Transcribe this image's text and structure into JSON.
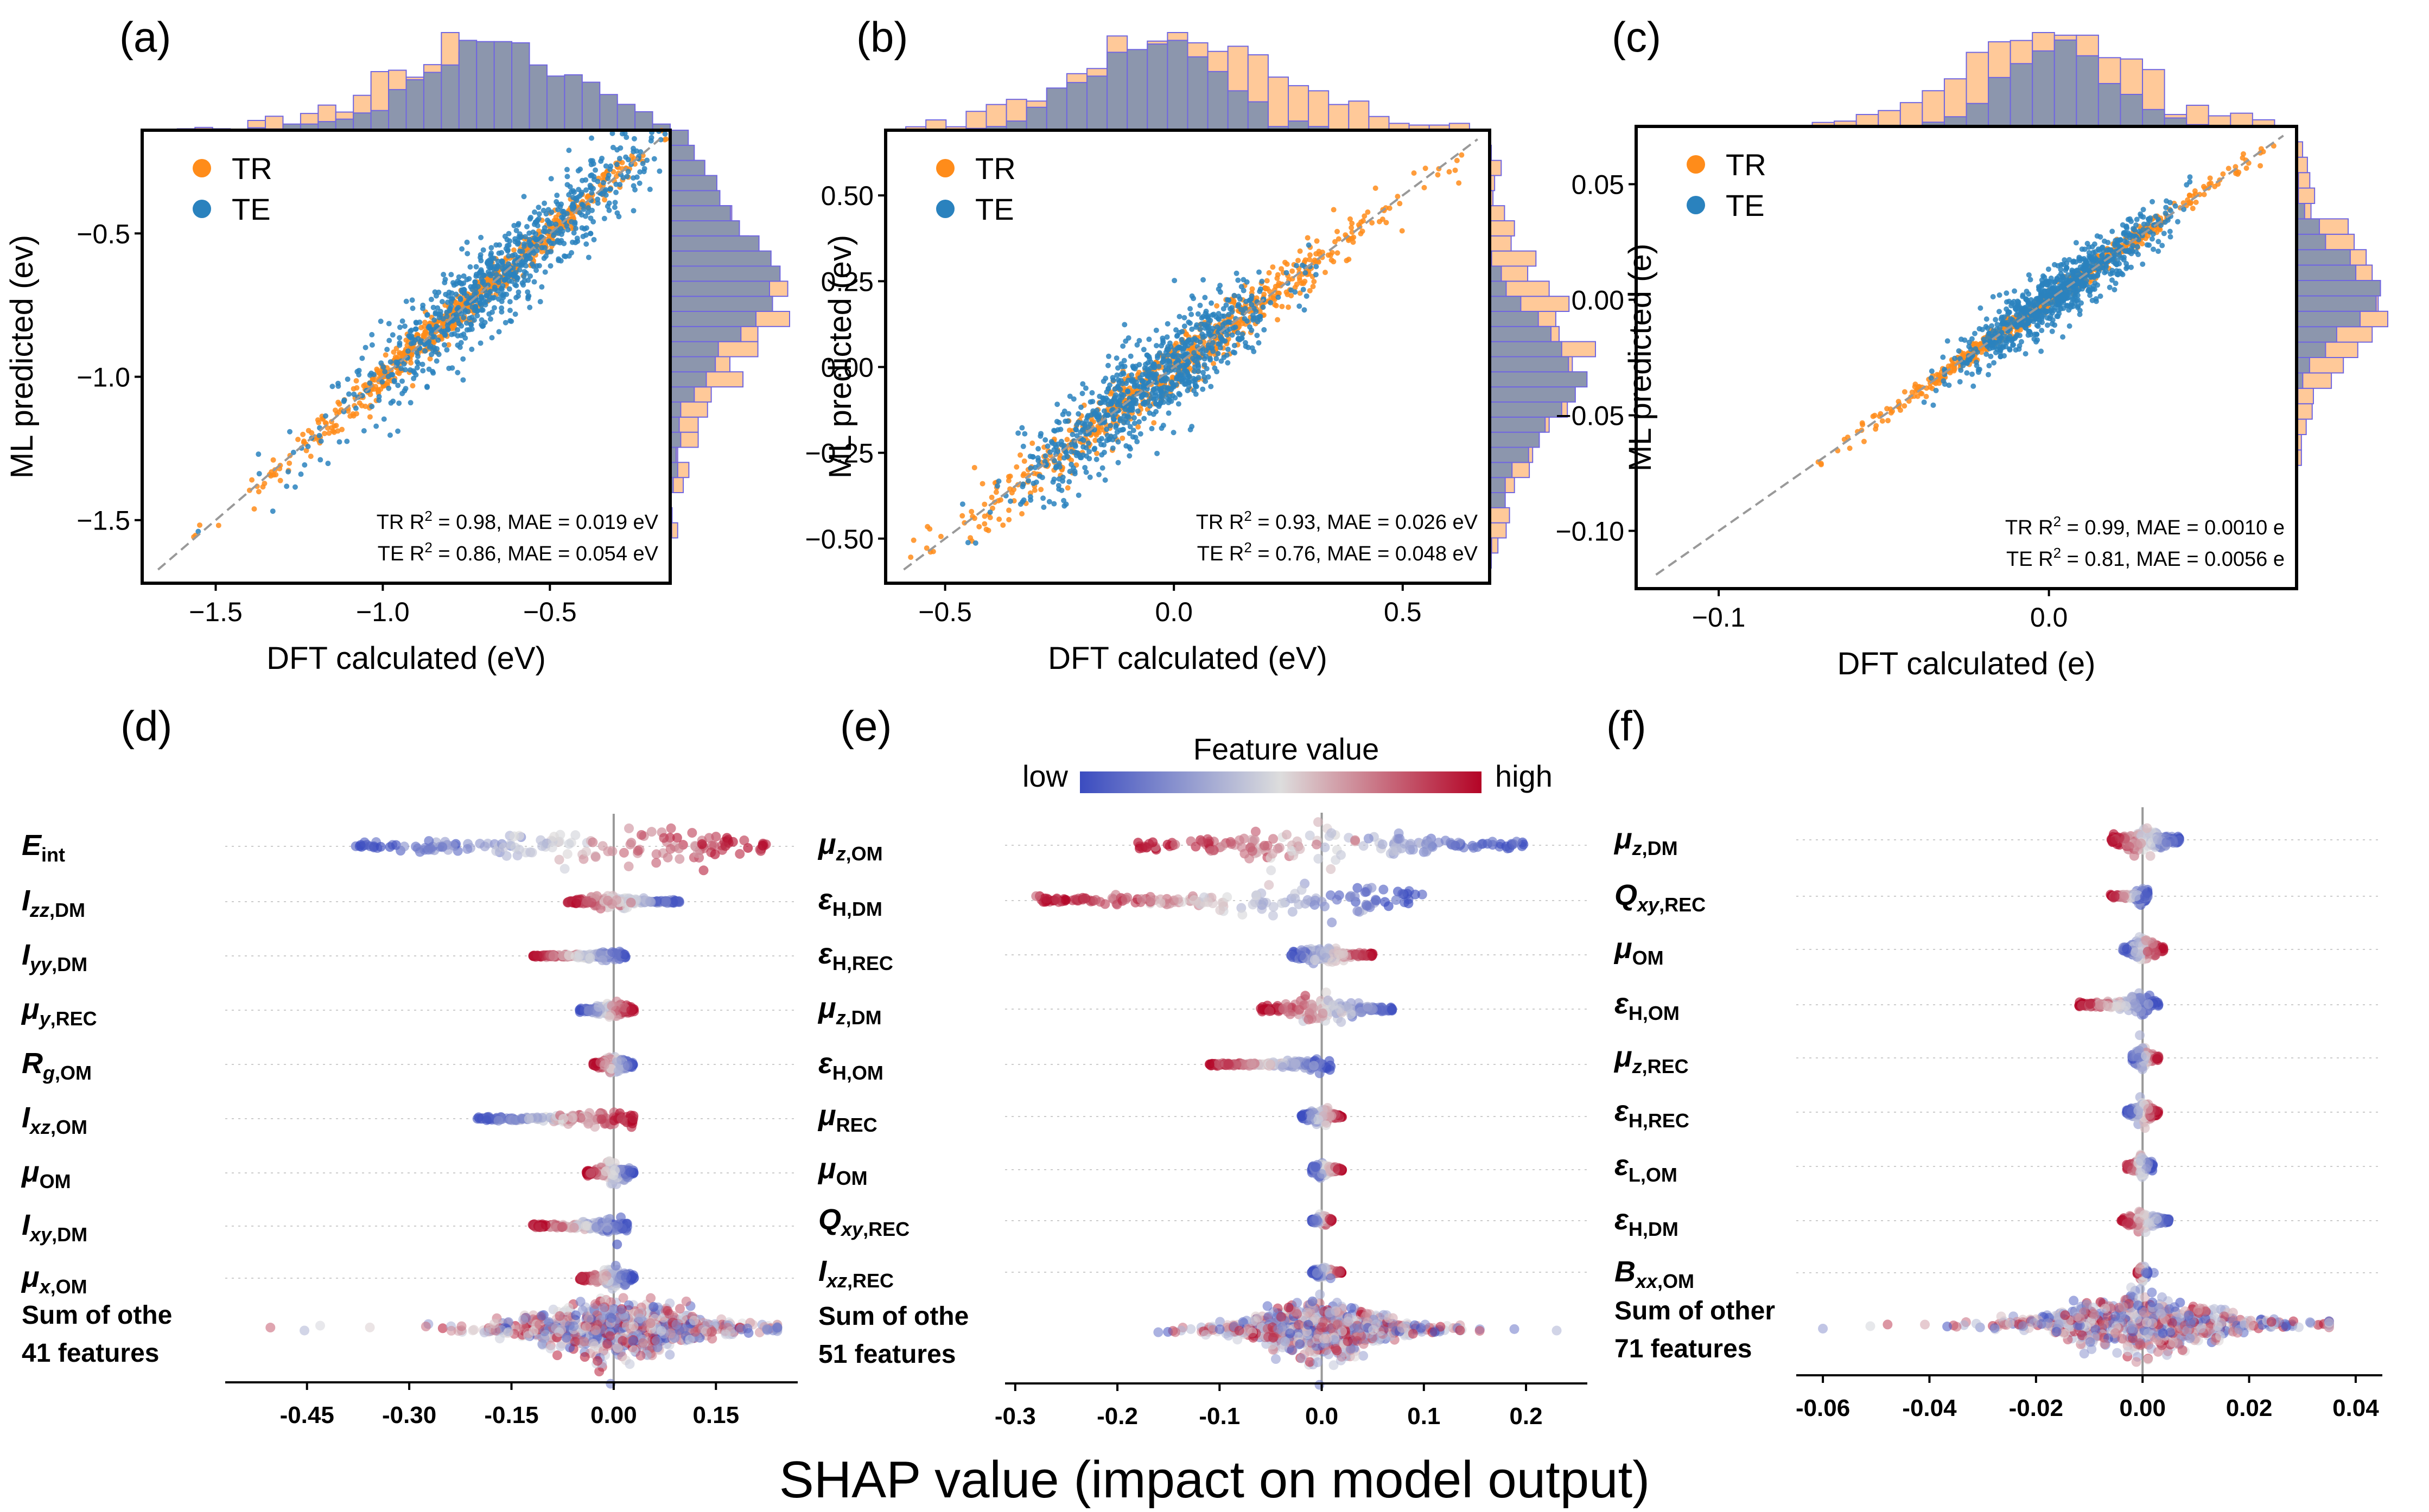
{
  "colors": {
    "train": "#ff8c1a",
    "test": "#2a82be",
    "hist_train": "#ffc999",
    "hist_test": "#8c96ad",
    "hist_edge": "#7066e0",
    "low": "#3b4cc0",
    "mid": "#dddddd",
    "high": "#b40426"
  },
  "xlabel_shap": "SHAP value (impact on model output)",
  "colorbar": {
    "title": "Feature value",
    "low": "low",
    "high": "high"
  },
  "legend": {
    "train": "TR",
    "test": "TE"
  },
  "panels": [
    {
      "label": "(a)",
      "xlabel": "DFT calculated (eV)",
      "ylabel": "ML predicted (ev)",
      "stat1_pre": "TR R",
      "stat1_post": " = 0.98, MAE = 0.019 eV",
      "stat2_pre": "TE R",
      "stat2_post": " = 0.86, MAE = 0.054 eV"
    },
    {
      "label": "(b)",
      "xlabel": "DFT calculated (eV)",
      "ylabel": "ML predicted (ev)",
      "stat1_pre": "TR R",
      "stat1_post": " = 0.93, MAE = 0.026 eV",
      "stat2_pre": "TE R",
      "stat2_post": " = 0.76, MAE = 0.048 eV"
    },
    {
      "label": "(c)",
      "xlabel": "DFT calculated (e)",
      "ylabel": "ML predicted (e)",
      "stat1_pre": "TR R",
      "stat1_post": " = 0.99, MAE = 0.0010 e",
      "stat2_pre": "TE R",
      "stat2_post": " = 0.81, MAE = 0.0056 e"
    }
  ],
  "chart_data": [
    {
      "type": "scatter",
      "title": "(a)",
      "xlabel": "DFT calculated (eV)",
      "ylabel": "ML predicted (ev)",
      "xlim": [
        -1.72,
        -0.14
      ],
      "ylim": [
        -1.72,
        -0.14
      ],
      "xticks": [
        -1.5,
        -1.0,
        -0.5
      ],
      "yticks": [
        -1.5,
        -1.0,
        -0.5
      ],
      "xtick_labels": [
        "−1.5",
        "−1.0",
        "−0.5"
      ],
      "ytick_labels": [
        "−1.5",
        "−1.0",
        "−0.5"
      ],
      "series": [
        {
          "name": "TR",
          "center": -0.75,
          "spread": 0.28,
          "noise": 0.03
        },
        {
          "name": "TE",
          "center": -0.65,
          "spread": 0.24,
          "noise": 0.08
        }
      ],
      "metrics": {
        "TR": {
          "R2": 0.98,
          "MAE": 0.019,
          "unit": "eV"
        },
        "TE": {
          "R2": 0.86,
          "MAE": 0.054,
          "unit": "eV"
        }
      }
    },
    {
      "type": "scatter",
      "title": "(b)",
      "xlabel": "DFT calculated (eV)",
      "ylabel": "ML predicted (ev)",
      "xlim": [
        -0.63,
        0.69
      ],
      "ylim": [
        -0.63,
        0.69
      ],
      "xticks": [
        -0.5,
        0.0,
        0.5
      ],
      "yticks": [
        -0.5,
        -0.25,
        0.0,
        0.25,
        0.5
      ],
      "xtick_labels": [
        "−0.5",
        "0.0",
        "0.5"
      ],
      "ytick_labels": [
        "−0.50",
        "−0.25",
        "0.00",
        "0.25",
        "0.50"
      ],
      "series": [
        {
          "name": "TR",
          "center": 0.0,
          "spread": 0.22,
          "noise": 0.04
        },
        {
          "name": "TE",
          "center": -0.05,
          "spread": 0.14,
          "noise": 0.07
        }
      ],
      "metrics": {
        "TR": {
          "R2": 0.93,
          "MAE": 0.026,
          "unit": "eV"
        },
        "TE": {
          "R2": 0.76,
          "MAE": 0.048,
          "unit": "eV"
        }
      }
    },
    {
      "type": "scatter",
      "title": "(c)",
      "xlabel": "DFT calculated (e)",
      "ylabel": "ML predicted (e)",
      "xlim": [
        -0.125,
        0.075
      ],
      "ylim": [
        -0.125,
        0.075
      ],
      "xticks": [
        -0.1,
        0.0
      ],
      "yticks": [
        -0.1,
        -0.05,
        0.0,
        0.05
      ],
      "xtick_labels": [
        "−0.1",
        "0.0"
      ],
      "ytick_labels": [
        "−0.10",
        "−0.05",
        "0.00",
        "0.05"
      ],
      "series": [
        {
          "name": "TR",
          "center": 0.0,
          "spread": 0.025,
          "noise": 0.002
        },
        {
          "name": "TE",
          "center": 0.003,
          "spread": 0.016,
          "noise": 0.006
        }
      ],
      "metrics": {
        "TR": {
          "R2": 0.99,
          "MAE": 0.001,
          "unit": "e"
        },
        "TE": {
          "R2": 0.81,
          "MAE": 0.0056,
          "unit": "e"
        }
      }
    },
    {
      "type": "beeswarm",
      "title": "(d)",
      "xlabel": "SHAP value (impact on model output)",
      "xlim": [
        -0.57,
        0.27
      ],
      "xticks": [
        -0.45,
        -0.3,
        -0.15,
        0.0,
        0.15
      ],
      "xtick_labels": [
        "-0.45",
        "-0.30",
        "-0.15",
        "0.00",
        "0.15"
      ],
      "features": [
        {
          "main": "E",
          "sub": "int",
          "min": -0.38,
          "max": 0.23,
          "width": 1.0,
          "corr": 1
        },
        {
          "main": "I",
          "subi": "zz",
          "subn": ",DM",
          "min": -0.07,
          "max": 0.1,
          "width": 0.3,
          "corr": -1
        },
        {
          "main": "I",
          "subi": "yy",
          "subn": ",DM",
          "min": -0.12,
          "max": 0.02,
          "width": 0.25,
          "corr": -1
        },
        {
          "main": "μ",
          "subi": "y",
          "subn": ",REC",
          "min": -0.05,
          "max": 0.03,
          "width": 0.35,
          "corr": 1
        },
        {
          "main": "R",
          "subi": "g",
          "subn": ",OM",
          "min": -0.03,
          "max": 0.03,
          "width": 0.45,
          "corr": -1
        },
        {
          "main": "I",
          "subi": "xz",
          "subn": ",OM",
          "min": -0.2,
          "max": 0.03,
          "width": 0.4,
          "corr": 1
        },
        {
          "main": "μ",
          "sub": "OM",
          "min": -0.04,
          "max": 0.03,
          "width": 0.5,
          "corr": -1
        },
        {
          "main": "I",
          "subi": "xy",
          "subn": ",DM",
          "min": -0.12,
          "max": 0.02,
          "width": 0.4,
          "corr": -1
        },
        {
          "main": "μ",
          "subi": "x",
          "subn": ",OM",
          "min": -0.05,
          "max": 0.03,
          "width": 0.5,
          "corr": -1
        }
      ],
      "other": {
        "line1": "Sum of othe",
        "line2": "41 features",
        "min": -0.55,
        "max": 0.24,
        "width": 1.1
      }
    },
    {
      "type": "beeswarm",
      "title": "(e)",
      "xlabel": "SHAP value (impact on model output)",
      "xlim": [
        -0.31,
        0.26
      ],
      "xticks": [
        -0.3,
        -0.2,
        -0.1,
        0.0,
        0.1,
        0.2
      ],
      "xtick_labels": [
        "-0.3",
        "-0.2",
        "-0.1",
        "0.0",
        "0.1",
        "0.2"
      ],
      "features": [
        {
          "main": "μ",
          "subi": "z",
          "subn": ",OM",
          "min": -0.18,
          "max": 0.2,
          "width": 0.9,
          "corr": -1
        },
        {
          "main": "ε",
          "subn": "H,DM",
          "min": -0.28,
          "max": 0.1,
          "width": 0.9,
          "corr": -1
        },
        {
          "main": "ε",
          "subn": "H,REC",
          "min": -0.03,
          "max": 0.05,
          "width": 0.4,
          "corr": 1
        },
        {
          "main": "μ",
          "subi": "z",
          "subn": ",DM",
          "min": -0.06,
          "max": 0.07,
          "width": 0.55,
          "corr": -1
        },
        {
          "main": "ε",
          "subn": "H,OM",
          "min": -0.11,
          "max": 0.01,
          "width": 0.3,
          "corr": -1
        },
        {
          "main": "μ",
          "sub": "REC",
          "min": -0.02,
          "max": 0.02,
          "width": 0.4,
          "corr": 1
        },
        {
          "main": "μ",
          "sub": "OM",
          "min": -0.01,
          "max": 0.02,
          "width": 0.35,
          "corr": 1
        },
        {
          "main": "Q",
          "subi": "xy",
          "subn": ",REC",
          "min": -0.01,
          "max": 0.01,
          "width": 0.25,
          "corr": 1
        },
        {
          "main": "I",
          "subi": "xz",
          "subn": ",REC",
          "min": -0.01,
          "max": 0.02,
          "width": 0.25,
          "corr": 1
        }
      ],
      "other": {
        "line1": "Sum of othe",
        "line2": "51 features",
        "min": -0.16,
        "max": 0.23,
        "width": 1.1
      }
    },
    {
      "type": "beeswarm",
      "title": "(f)",
      "xlabel": "SHAP value (impact on model output)",
      "xlim": [
        -0.065,
        0.045
      ],
      "xticks": [
        -0.06,
        -0.04,
        -0.02,
        0.0,
        0.02,
        0.04
      ],
      "xtick_labels": [
        "-0.06",
        "-0.04",
        "-0.02",
        "0.00",
        "0.02",
        "0.04"
      ],
      "features": [
        {
          "main": "μ",
          "subi": "z",
          "subn": ",DM",
          "min": -0.006,
          "max": 0.007,
          "width": 0.7,
          "corr": -1
        },
        {
          "main": "Q",
          "subi": "xy",
          "subn": ",REC",
          "min": -0.006,
          "max": 0.001,
          "width": 0.3,
          "corr": -1
        },
        {
          "main": "μ",
          "sub": "OM",
          "min": -0.004,
          "max": 0.004,
          "width": 0.55,
          "corr": 1
        },
        {
          "main": "ε",
          "subn": "H,OM",
          "min": -0.012,
          "max": 0.003,
          "width": 0.5,
          "corr": -1
        },
        {
          "main": "μ",
          "subi": "z",
          "subn": ",REC",
          "min": -0.002,
          "max": 0.003,
          "width": 0.5,
          "corr": 1
        },
        {
          "main": "ε",
          "subn": "H,REC",
          "min": -0.003,
          "max": 0.003,
          "width": 0.5,
          "corr": 1
        },
        {
          "main": "ε",
          "subn": "L,OM",
          "min": -0.003,
          "max": 0.002,
          "width": 0.5,
          "corr": -1
        },
        {
          "main": "ε",
          "subn": "H,DM",
          "min": -0.004,
          "max": 0.005,
          "width": 0.45,
          "corr": -1
        },
        {
          "main": "B",
          "subi": "xx",
          "subn": ",OM",
          "min": -0.001,
          "max": 0.001,
          "width": 0.35,
          "corr": -1
        }
      ],
      "other": {
        "line1": "Sum of other",
        "line2": "71 features",
        "min": -0.06,
        "max": 0.035,
        "width": 1.1
      }
    }
  ]
}
